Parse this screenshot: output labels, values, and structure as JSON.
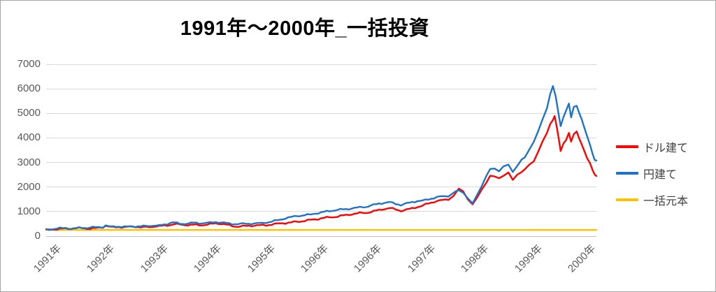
{
  "frame": {
    "border_color": "#a6a6a6",
    "background": "#ffffff"
  },
  "chart_data": {
    "type": "line",
    "title": "1991年～2000年_一括投資",
    "xlabel": "",
    "ylabel": "",
    "ylim": [
      0,
      7000
    ],
    "y_ticks": [
      0,
      1000,
      2000,
      3000,
      4000,
      5000,
      6000,
      7000
    ],
    "x_ticks": [
      {
        "label": "1991年",
        "pct": 0.25
      },
      {
        "label": "1992年",
        "pct": 9.96
      },
      {
        "label": "1993年",
        "pct": 19.67
      },
      {
        "label": "1994年",
        "pct": 29.38
      },
      {
        "label": "1995年",
        "pct": 39.08
      },
      {
        "label": "1996年",
        "pct": 48.79
      },
      {
        "label": "1996年",
        "pct": 58.5
      },
      {
        "label": "1997年",
        "pct": 68.21
      },
      {
        "label": "1998年",
        "pct": 77.91
      },
      {
        "label": "1999年",
        "pct": 87.62
      },
      {
        "label": "2000年",
        "pct": 97.33
      }
    ],
    "grid": "horizontal",
    "grid_color": "#d9d9d9",
    "axis_label_color": "#595959",
    "legend_position": "right",
    "volatility_jitter_pct": 1.3,
    "series": [
      {
        "name": "一括元本",
        "color": "#ffc000",
        "volatile": false,
        "points": [
          [
            0,
            250
          ],
          [
            100,
            250
          ]
        ]
      },
      {
        "name": "ドル建て",
        "color": "#ff0000",
        "volatile": true,
        "points": [
          [
            0,
            250
          ],
          [
            0.6,
            266
          ],
          [
            1.5,
            286
          ],
          [
            2.5,
            300
          ],
          [
            3.5,
            310
          ],
          [
            4.5,
            300
          ],
          [
            5.5,
            315
          ],
          [
            6.5,
            320
          ],
          [
            7.5,
            310
          ],
          [
            8.5,
            325
          ],
          [
            9.5,
            340
          ],
          [
            10.3,
            360
          ],
          [
            10.8,
            420
          ],
          [
            11.4,
            390
          ],
          [
            12.2,
            365
          ],
          [
            13.2,
            375
          ],
          [
            14.2,
            360
          ],
          [
            15.2,
            370
          ],
          [
            16.2,
            380
          ],
          [
            17.2,
            365
          ],
          [
            18.2,
            370
          ],
          [
            19.2,
            380
          ],
          [
            20,
            390
          ],
          [
            21,
            405
          ],
          [
            22,
            440
          ],
          [
            23,
            490
          ],
          [
            23.8,
            470
          ],
          [
            24.8,
            450
          ],
          [
            25.8,
            455
          ],
          [
            26.8,
            470
          ],
          [
            27.8,
            455
          ],
          [
            28.8,
            465
          ],
          [
            29.8,
            480
          ],
          [
            30.8,
            515
          ],
          [
            31.8,
            495
          ],
          [
            32.8,
            460
          ],
          [
            33.8,
            420
          ],
          [
            34.8,
            400
          ],
          [
            35.8,
            410
          ],
          [
            36.8,
            420
          ],
          [
            37.8,
            425
          ],
          [
            38.8,
            430
          ],
          [
            40,
            440
          ],
          [
            41,
            465
          ],
          [
            42,
            495
          ],
          [
            43,
            525
          ],
          [
            44,
            550
          ],
          [
            45.1,
            575
          ],
          [
            46,
            600
          ],
          [
            47,
            625
          ],
          [
            48,
            650
          ],
          [
            48.8,
            685
          ],
          [
            50,
            725
          ],
          [
            51,
            760
          ],
          [
            52,
            785
          ],
          [
            53,
            810
          ],
          [
            54,
            840
          ],
          [
            55,
            870
          ],
          [
            56,
            900
          ],
          [
            57,
            930
          ],
          [
            58.5,
            970
          ],
          [
            59.5,
            1020
          ],
          [
            60.5,
            1070
          ],
          [
            61.5,
            1110
          ],
          [
            62.5,
            1130
          ],
          [
            63.5,
            1080
          ],
          [
            64.5,
            1030
          ],
          [
            65.5,
            1080
          ],
          [
            66.5,
            1140
          ],
          [
            67.5,
            1200
          ],
          [
            68.2,
            1230
          ],
          [
            69,
            1290
          ],
          [
            70,
            1360
          ],
          [
            71,
            1420
          ],
          [
            72,
            1460
          ],
          [
            73.1,
            1500
          ],
          [
            74,
            1650
          ],
          [
            75,
            1910
          ],
          [
            75.8,
            1820
          ],
          [
            76.6,
            1540
          ],
          [
            77.5,
            1270
          ],
          [
            78.3,
            1550
          ],
          [
            79.1,
            1900
          ],
          [
            80,
            2200
          ],
          [
            80.7,
            2400
          ],
          [
            81.5,
            2450
          ],
          [
            82.3,
            2380
          ],
          [
            83.1,
            2450
          ],
          [
            84,
            2550
          ],
          [
            84.8,
            2330
          ],
          [
            85.6,
            2500
          ],
          [
            86.4,
            2600
          ],
          [
            87,
            2700
          ],
          [
            87.8,
            2900
          ],
          [
            88.6,
            3100
          ],
          [
            89.4,
            3400
          ],
          [
            90.2,
            3800
          ],
          [
            91,
            4250
          ],
          [
            91.6,
            4600
          ],
          [
            92.1,
            4750
          ],
          [
            92.4,
            4830
          ],
          [
            92.8,
            4400
          ],
          [
            93.2,
            3900
          ],
          [
            93.5,
            3450
          ],
          [
            94,
            3800
          ],
          [
            94.5,
            4000
          ],
          [
            95,
            4200
          ],
          [
            95.4,
            3850
          ],
          [
            95.9,
            4100
          ],
          [
            96.4,
            4230
          ],
          [
            96.9,
            4000
          ],
          [
            97.3,
            3750
          ],
          [
            97.8,
            3500
          ],
          [
            98.3,
            3150
          ],
          [
            98.8,
            2950
          ],
          [
            99.3,
            2700
          ],
          [
            99.7,
            2500
          ],
          [
            100,
            2450
          ]
        ]
      },
      {
        "name": "円建て",
        "color": "#1e73c8",
        "volatile": true,
        "points": [
          [
            0,
            250
          ],
          [
            0.6,
            272
          ],
          [
            1.5,
            295
          ],
          [
            2.5,
            312
          ],
          [
            3.5,
            325
          ],
          [
            4.5,
            315
          ],
          [
            5.5,
            330
          ],
          [
            6.5,
            342
          ],
          [
            7.5,
            332
          ],
          [
            8.5,
            345
          ],
          [
            9.5,
            356
          ],
          [
            10.3,
            372
          ],
          [
            10.8,
            432
          ],
          [
            11.4,
            406
          ],
          [
            12.2,
            382
          ],
          [
            13.2,
            392
          ],
          [
            14.2,
            381
          ],
          [
            15.2,
            395
          ],
          [
            16.2,
            405
          ],
          [
            17.2,
            391
          ],
          [
            18.2,
            400
          ],
          [
            19.2,
            415
          ],
          [
            20,
            426
          ],
          [
            21,
            446
          ],
          [
            22,
            492
          ],
          [
            23,
            556
          ],
          [
            23.8,
            530
          ],
          [
            24.8,
            506
          ],
          [
            25.8,
            516
          ],
          [
            26.8,
            531
          ],
          [
            27.8,
            516
          ],
          [
            28.8,
            531
          ],
          [
            29.8,
            546
          ],
          [
            30.8,
            586
          ],
          [
            31.8,
            561
          ],
          [
            32.8,
            526
          ],
          [
            33.8,
            492
          ],
          [
            34.8,
            481
          ],
          [
            35.8,
            496
          ],
          [
            36.8,
            511
          ],
          [
            37.8,
            521
          ],
          [
            38.8,
            531
          ],
          [
            40,
            561
          ],
          [
            41,
            601
          ],
          [
            42,
            651
          ],
          [
            43,
            701
          ],
          [
            44,
            746
          ],
          [
            45.1,
            791
          ],
          [
            46,
            821
          ],
          [
            47,
            856
          ],
          [
            48,
            886
          ],
          [
            48.8,
            911
          ],
          [
            50,
            961
          ],
          [
            51,
            1001
          ],
          [
            52,
            1031
          ],
          [
            53,
            1061
          ],
          [
            54,
            1091
          ],
          [
            55,
            1121
          ],
          [
            56,
            1151
          ],
          [
            57,
            1176
          ],
          [
            58.5,
            1206
          ],
          [
            59.5,
            1261
          ],
          [
            60.5,
            1321
          ],
          [
            61.5,
            1361
          ],
          [
            62.5,
            1386
          ],
          [
            63.5,
            1331
          ],
          [
            64.5,
            1271
          ],
          [
            65.5,
            1321
          ],
          [
            66.5,
            1381
          ],
          [
            67.5,
            1421
          ],
          [
            68.2,
            1436
          ],
          [
            69,
            1481
          ],
          [
            70,
            1541
          ],
          [
            71,
            1591
          ],
          [
            72,
            1621
          ],
          [
            73.1,
            1641
          ],
          [
            74,
            1751
          ],
          [
            75,
            1845
          ],
          [
            75.8,
            1781
          ],
          [
            76.6,
            1561
          ],
          [
            77.5,
            1330
          ],
          [
            78.3,
            1650
          ],
          [
            79.1,
            2050
          ],
          [
            80,
            2450
          ],
          [
            80.7,
            2700
          ],
          [
            81.5,
            2760
          ],
          [
            82.3,
            2700
          ],
          [
            83.1,
            2780
          ],
          [
            84,
            2900
          ],
          [
            84.8,
            2650
          ],
          [
            85.6,
            2870
          ],
          [
            86.4,
            3050
          ],
          [
            87,
            3200
          ],
          [
            87.8,
            3550
          ],
          [
            88.6,
            3850
          ],
          [
            89.4,
            4250
          ],
          [
            90.2,
            4700
          ],
          [
            91,
            5300
          ],
          [
            91.6,
            5800
          ],
          [
            92.1,
            6100
          ],
          [
            92.6,
            5600
          ],
          [
            93.2,
            4900
          ],
          [
            93.5,
            4500
          ],
          [
            94,
            4900
          ],
          [
            94.5,
            5150
          ],
          [
            95,
            5300
          ],
          [
            95.4,
            4800
          ],
          [
            95.9,
            5200
          ],
          [
            96.4,
            5350
          ],
          [
            96.9,
            5100
          ],
          [
            97.3,
            4800
          ],
          [
            97.8,
            4450
          ],
          [
            98.3,
            4000
          ],
          [
            98.8,
            3700
          ],
          [
            99.3,
            3350
          ],
          [
            99.7,
            3100
          ],
          [
            100,
            3080
          ]
        ]
      }
    ],
    "legend_order": [
      "ドル建て",
      "円建て",
      "一括元本"
    ]
  }
}
